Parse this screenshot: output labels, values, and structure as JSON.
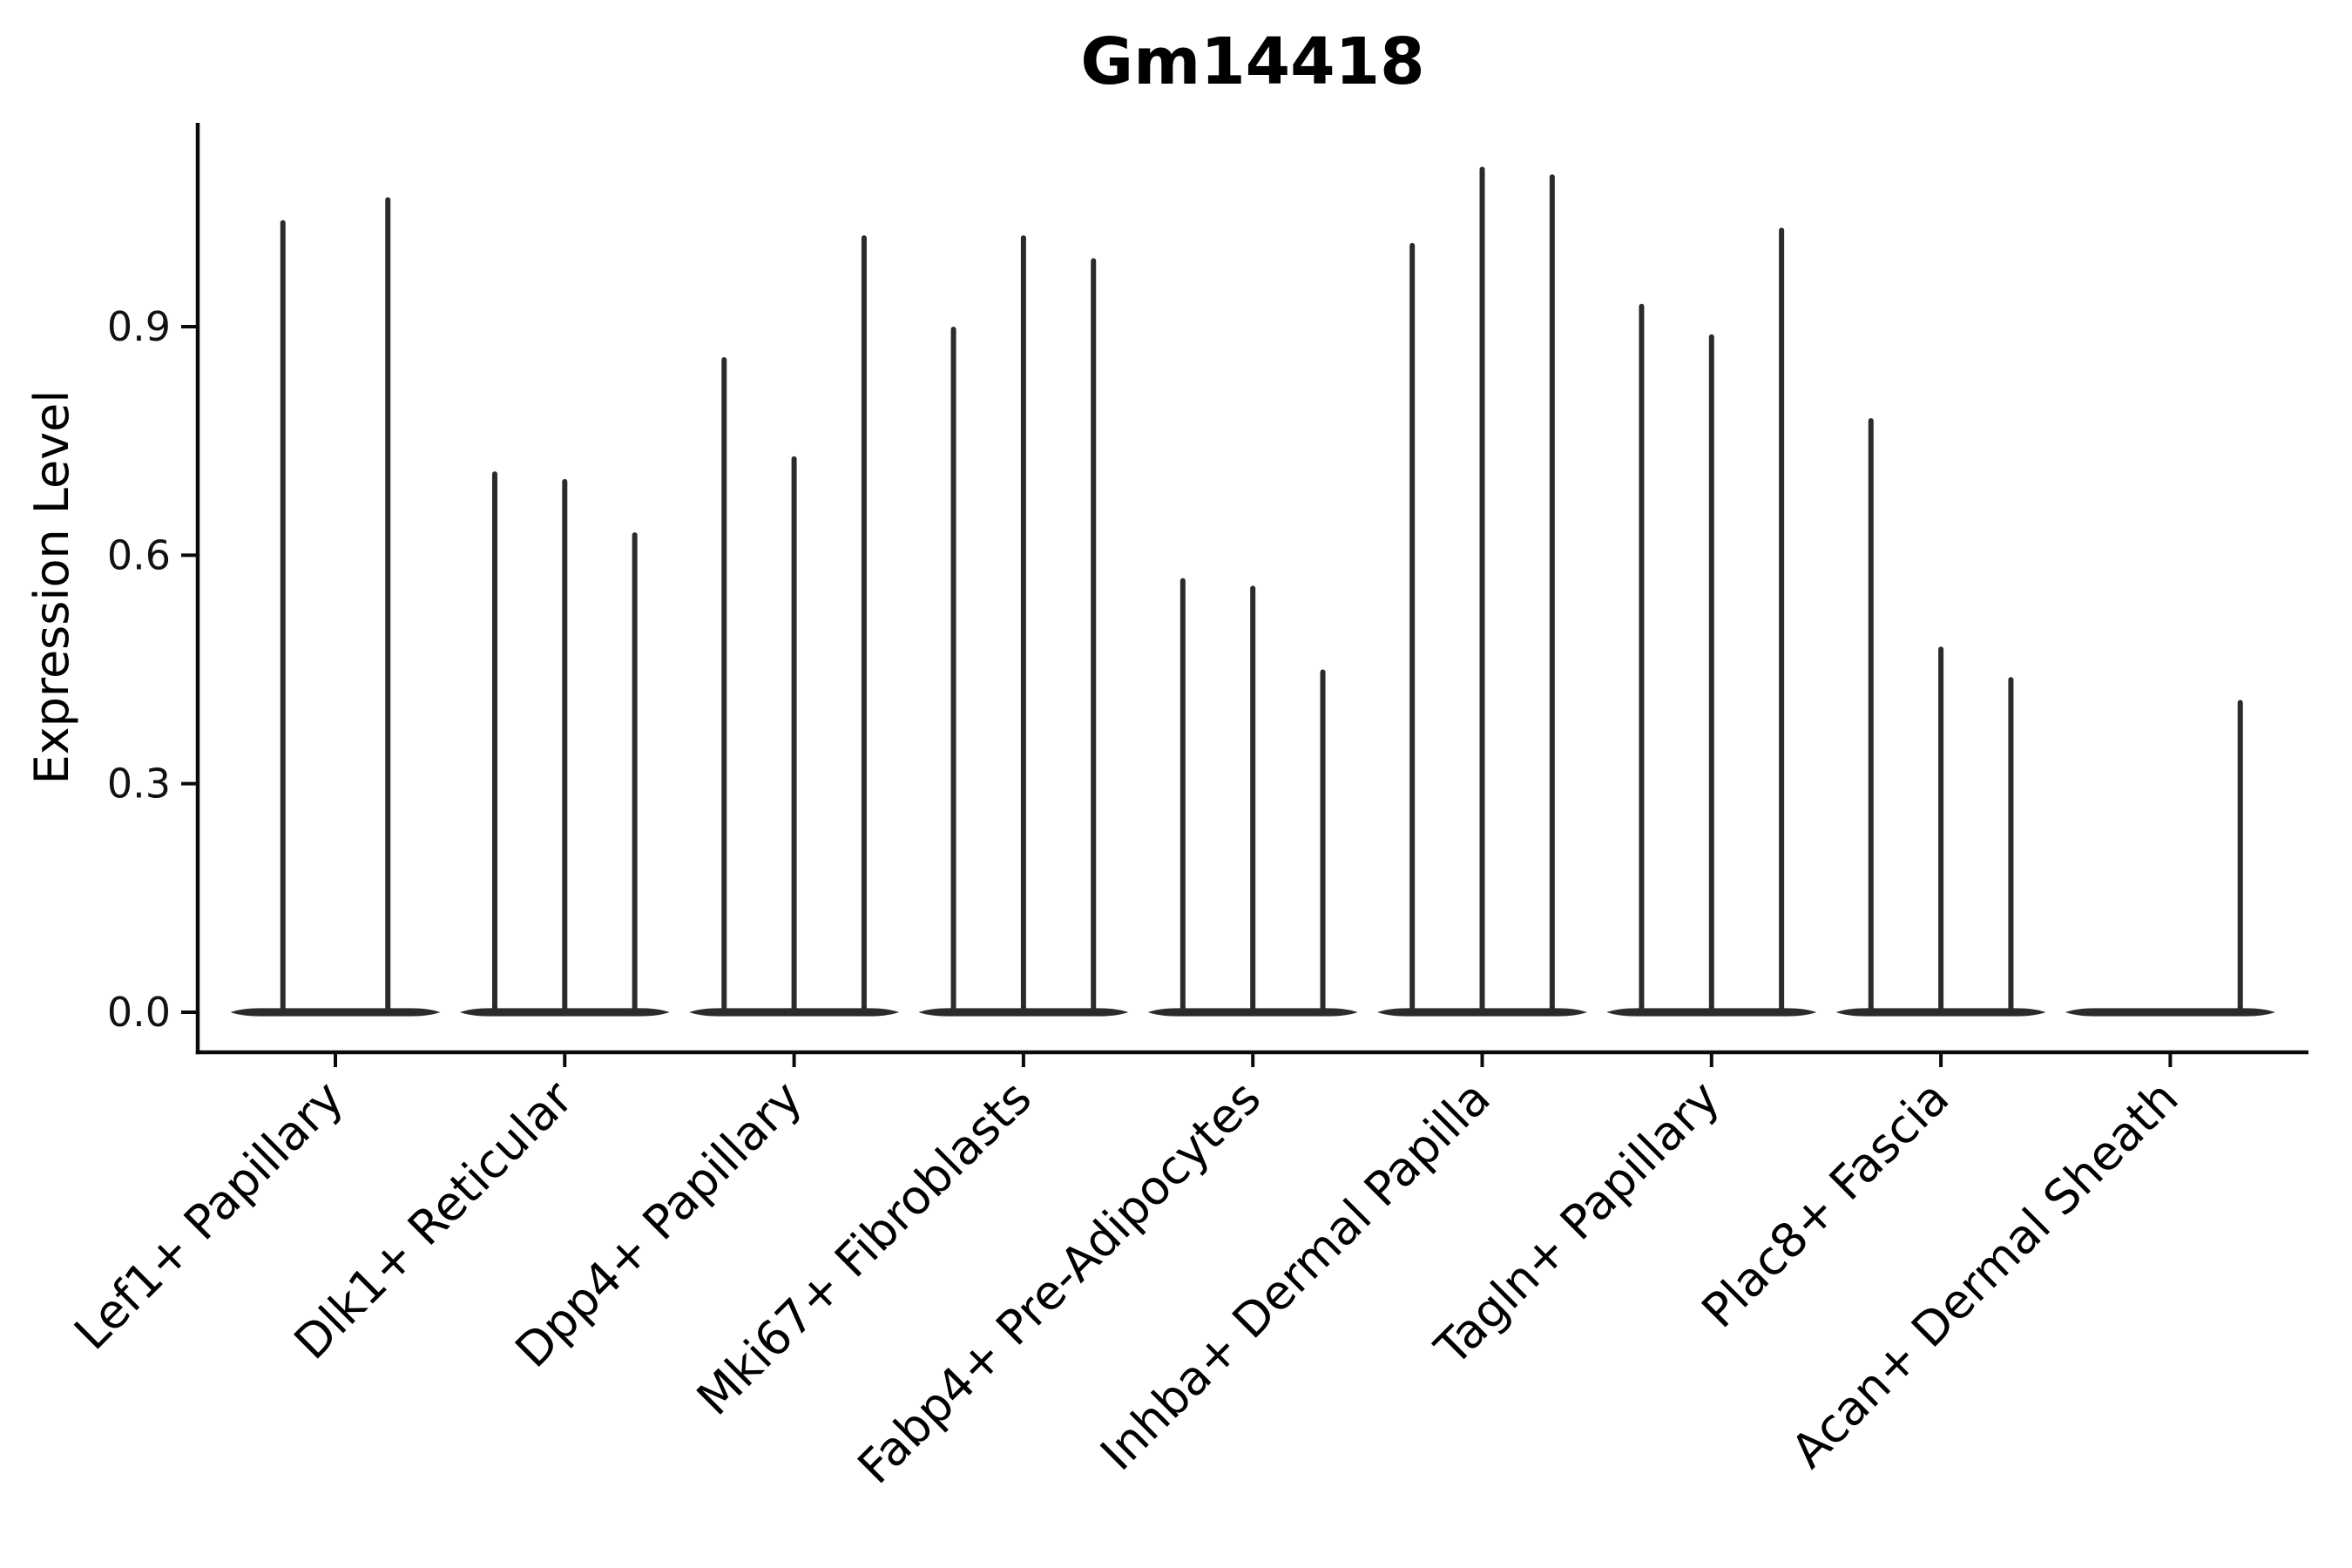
{
  "figure": {
    "title": "Gm14418",
    "ylabel": "Expression Level"
  },
  "chart_data": {
    "type": "violin",
    "title": "Gm14418",
    "xlabel": "",
    "ylabel": "Expression Level",
    "ytick_labels": [
      "0.0",
      "0.3",
      "0.6",
      "0.9"
    ],
    "ytick_values": [
      0.0,
      0.3,
      0.6,
      0.9
    ],
    "ylim": [
      -0.05,
      1.17
    ],
    "grid": false,
    "legend": false,
    "x_rotation_degrees": 45,
    "categories": [
      "Lef1+ Papillary",
      "Dlk1+ Reticular",
      "Dpp4+ Papillary",
      "Mki67+ Fibroblasts",
      "Fabp4+ Pre-Adipocytes",
      "Inhba+ Dermal Papilla",
      "Tagln+ Papillary",
      "Plac8+ Fascia",
      "Acan+ Dermal Sheath"
    ],
    "groups": [
      {
        "category": "Lef1+ Papillary",
        "violin_maxima": [
          1.04,
          1.07
        ]
      },
      {
        "category": "Dlk1+ Reticular",
        "violin_maxima": [
          0.71,
          0.7,
          0.63
        ]
      },
      {
        "category": "Dpp4+ Papillary",
        "violin_maxima": [
          0.86,
          0.73,
          1.02
        ]
      },
      {
        "category": "Mki67+ Fibroblasts",
        "violin_maxima": [
          0.9,
          1.02,
          0.99
        ]
      },
      {
        "category": "Fabp4+ Pre-Adipocytes",
        "violin_maxima": [
          0.57,
          0.56,
          0.45
        ]
      },
      {
        "category": "Inhba+ Dermal Papilla",
        "violin_maxima": [
          1.01,
          1.11,
          1.1
        ]
      },
      {
        "category": "Tagln+ Papillary",
        "violin_maxima": [
          0.93,
          0.89,
          1.03
        ]
      },
      {
        "category": "Plac8+ Fascia",
        "violin_maxima": [
          0.78,
          0.48,
          0.44
        ]
      },
      {
        "category": "Acan+ Dermal Sheath",
        "violin_maxima": [
          0.0,
          0.0,
          0.41
        ]
      }
    ],
    "note": "Each category shows narrow violins flattened at 0 with a thin spike rising to the listed maximum expression value; violins with 0.00 show only the flat base."
  },
  "colors": {
    "background": "#ffffff",
    "violin": "#2b2b2b",
    "axis": "#0a0a0a",
    "text": "#000000"
  }
}
